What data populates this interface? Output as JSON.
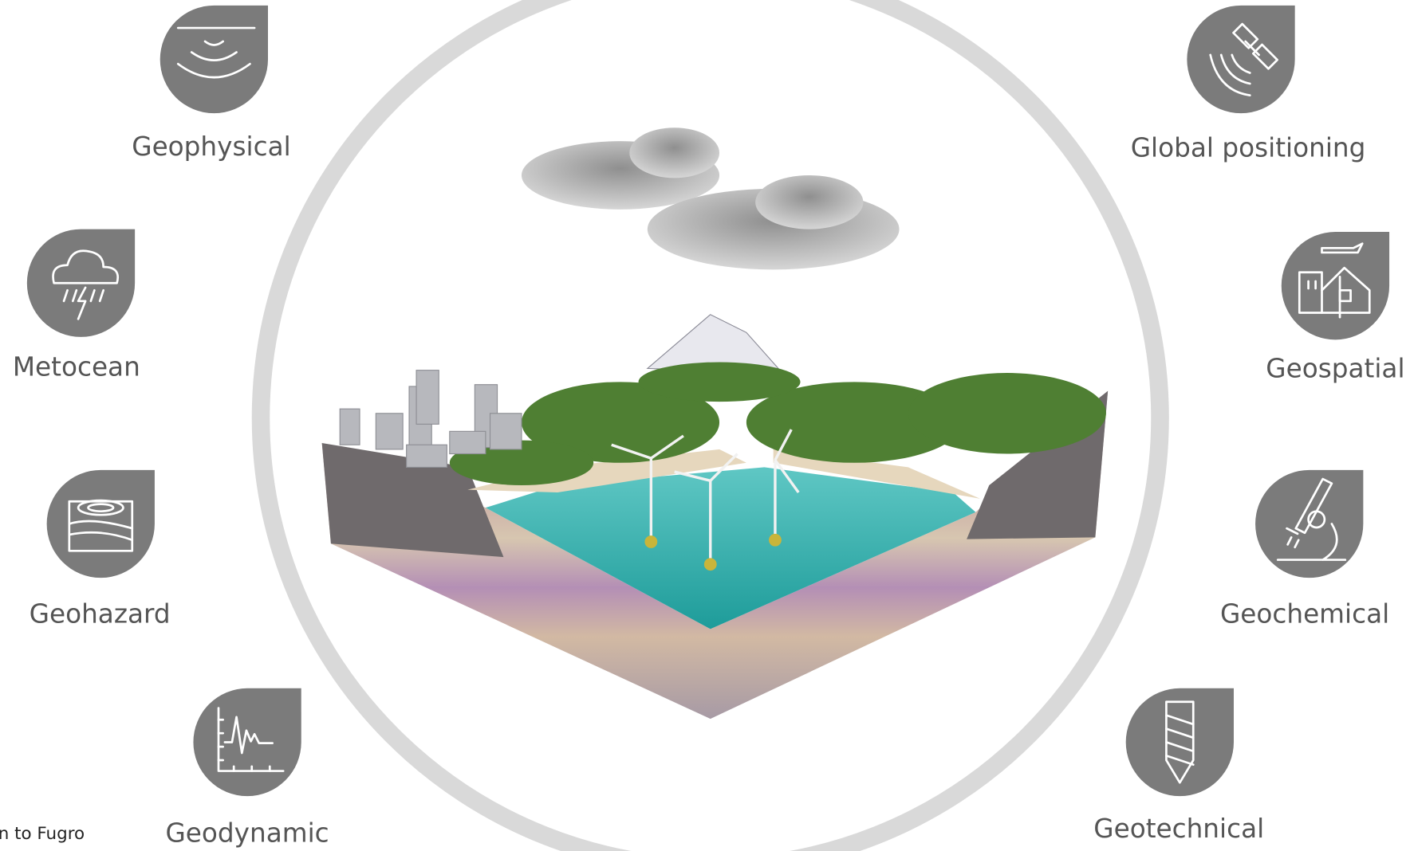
{
  "services": [
    {
      "label": "Geophysical"
    },
    {
      "label": "Metocean"
    },
    {
      "label": "Geohazard"
    },
    {
      "label": "Geodynamic"
    },
    {
      "label": "Global positioning"
    },
    {
      "label": "Geospatial"
    },
    {
      "label": "Geochemical"
    },
    {
      "label": "Geotechnical"
    }
  ],
  "footer_note": "n to Fugro"
}
